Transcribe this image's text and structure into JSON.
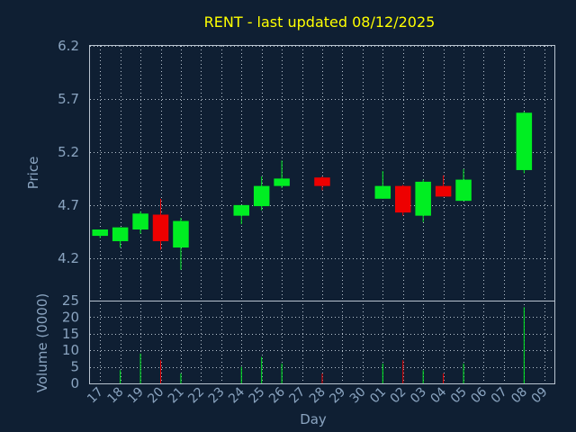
{
  "chart_data": {
    "type": "candlestick",
    "title": "RENT - last updated 08/12/2025",
    "xlabel": "Day",
    "ylabel": "Price",
    "volume_label": "Volume (0000)",
    "price_ylim": [
      3.8,
      6.2
    ],
    "price_ticks": [
      "4.2",
      "4.7",
      "5.2",
      "5.7",
      "6.2"
    ],
    "volume_ylim": [
      0,
      25
    ],
    "volume_ticks": [
      "0",
      "5",
      "10",
      "15",
      "20",
      "25"
    ],
    "x_ticks": [
      "17",
      "18",
      "19",
      "20",
      "21",
      "22",
      "23",
      "24",
      "25",
      "26",
      "27",
      "28",
      "29",
      "30",
      "01",
      "02",
      "03",
      "04",
      "05",
      "06",
      "07",
      "08",
      "09"
    ],
    "grid": true,
    "up_color": "#00ee22",
    "down_color": "#ee0000",
    "candles": [
      {
        "i": 0,
        "open": 4.41,
        "high": 4.47,
        "low": 4.39,
        "close": 4.47,
        "volume": 0
      },
      {
        "i": 1,
        "open": 4.36,
        "high": 4.49,
        "low": 4.3,
        "close": 4.49,
        "volume": 4
      },
      {
        "i": 2,
        "open": 4.47,
        "high": 4.64,
        "low": 4.43,
        "close": 4.62,
        "volume": 9
      },
      {
        "i": 3,
        "open": 4.61,
        "high": 4.76,
        "low": 4.28,
        "close": 4.36,
        "volume": 7
      },
      {
        "i": 4,
        "open": 4.3,
        "high": 4.58,
        "low": 4.09,
        "close": 4.55,
        "volume": 3
      },
      {
        "i": 7,
        "open": 4.6,
        "high": 4.7,
        "low": 4.52,
        "close": 4.7,
        "volume": 5
      },
      {
        "i": 8,
        "open": 4.69,
        "high": 4.97,
        "low": 4.65,
        "close": 4.88,
        "volume": 8
      },
      {
        "i": 9,
        "open": 4.88,
        "high": 5.12,
        "low": 4.86,
        "close": 4.95,
        "volume": 6
      },
      {
        "i": 11,
        "open": 4.96,
        "high": 4.97,
        "low": 4.84,
        "close": 4.88,
        "volume": 3
      },
      {
        "i": 14,
        "open": 4.76,
        "high": 5.02,
        "low": 4.76,
        "close": 4.88,
        "volume": 6
      },
      {
        "i": 15,
        "open": 4.88,
        "high": 4.89,
        "low": 4.6,
        "close": 4.63,
        "volume": 7
      },
      {
        "i": 16,
        "open": 4.6,
        "high": 4.94,
        "low": 4.54,
        "close": 4.92,
        "volume": 4
      },
      {
        "i": 17,
        "open": 4.88,
        "high": 4.98,
        "low": 4.78,
        "close": 4.78,
        "volume": 3
      },
      {
        "i": 18,
        "open": 4.74,
        "high": 5.04,
        "low": 4.74,
        "close": 4.94,
        "volume": 6
      },
      {
        "i": 21,
        "open": 5.03,
        "high": 5.58,
        "low": 5.0,
        "close": 5.57,
        "volume": 23
      }
    ]
  }
}
